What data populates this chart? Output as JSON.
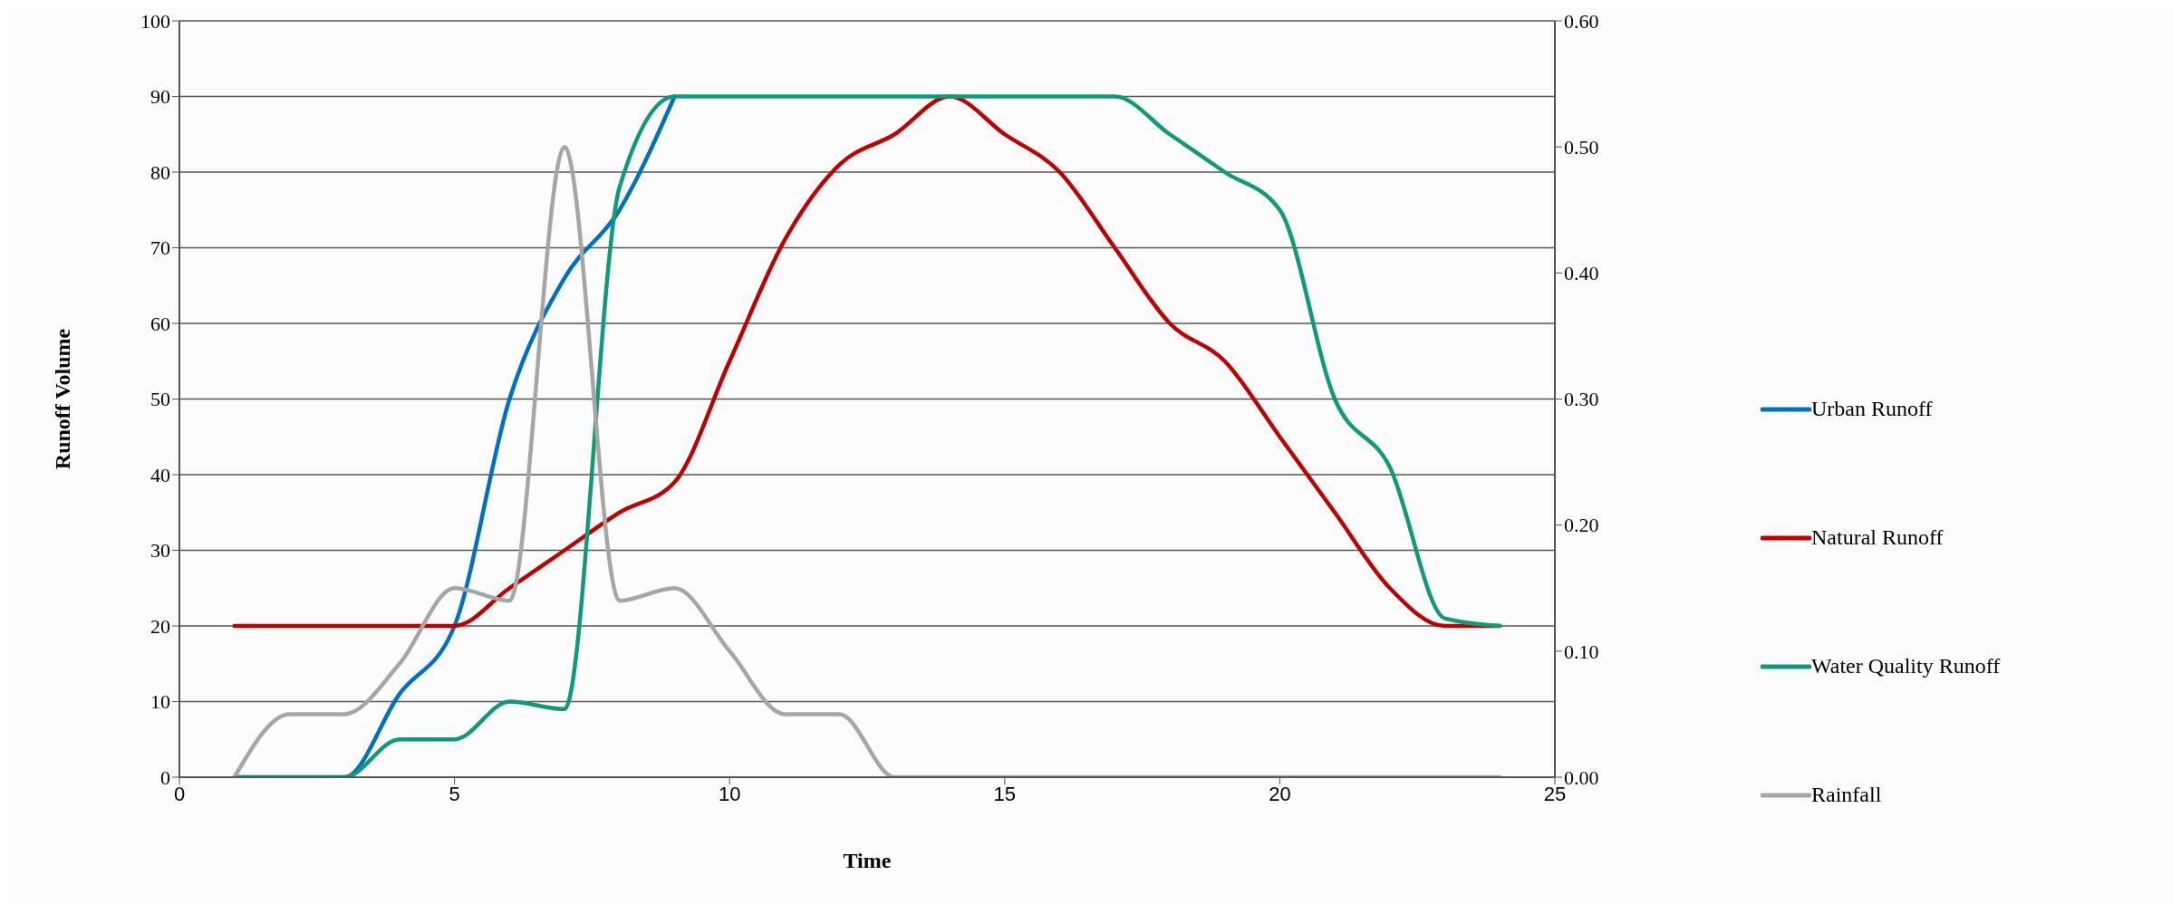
{
  "chart_data": {
    "type": "line",
    "xlabel": "Time",
    "ylabel": "Runoff Volume",
    "x": [
      1,
      2,
      3,
      4,
      5,
      6,
      7,
      8,
      9,
      10,
      11,
      12,
      13,
      14,
      15,
      16,
      17,
      18,
      19,
      20,
      21,
      22,
      23,
      24
    ],
    "series": [
      {
        "name": "Urban Runoff",
        "color": "#0070c0",
        "values": [
          0,
          0,
          0,
          11,
          20,
          50,
          66,
          75,
          90,
          null,
          null,
          null,
          null,
          null,
          null,
          null,
          null,
          null,
          null,
          null,
          null,
          null,
          null,
          null
        ]
      },
      {
        "name": "Natural Runoff",
        "color": "#c00000",
        "values": [
          20,
          20,
          20,
          20,
          20,
          25,
          30,
          35,
          39,
          55,
          71,
          81,
          85,
          90,
          85,
          80,
          70,
          60,
          55,
          45,
          35,
          25,
          20,
          20
        ]
      },
      {
        "name": "Water Quality Runoff",
        "color": "#119a78",
        "values": [
          0,
          0,
          0,
          5,
          5,
          10,
          9,
          78,
          90,
          90,
          90,
          90,
          90,
          90,
          90,
          90,
          90,
          85,
          80,
          75,
          50,
          41,
          21,
          20
        ]
      },
      {
        "name": "Rainfall",
        "color": "#a6a6a6",
        "axis": "y2",
        "values": [
          0,
          0.05,
          0.05,
          0.09,
          0.15,
          0.14,
          0.5,
          0.14,
          0.15,
          0.1,
          0.05,
          0.05,
          0,
          0,
          0,
          0,
          0,
          0,
          0,
          0,
          0,
          0,
          0,
          0
        ]
      }
    ],
    "xlim": [
      0,
      25
    ],
    "xticks": [
      0,
      5,
      10,
      15,
      20,
      25
    ],
    "ylim": [
      0,
      100
    ],
    "yticks": [
      0,
      10,
      20,
      30,
      40,
      50,
      60,
      70,
      80,
      90,
      100
    ],
    "y2lim": [
      0,
      0.6
    ],
    "y2ticks": [
      {
        "value": 0,
        "label": "0.00"
      },
      {
        "value": 0.1,
        "label": "0.10"
      },
      {
        "value": 0.2,
        "label": "0.20"
      },
      {
        "value": 0.3,
        "label": "0.30"
      },
      {
        "value": 0.4,
        "label": "0.40"
      },
      {
        "value": 0.5,
        "label": "0.50"
      },
      {
        "value": 0.6,
        "label": "0.60"
      }
    ],
    "grid": "y",
    "legend": "right",
    "marker": "none",
    "line_style": "solid"
  }
}
